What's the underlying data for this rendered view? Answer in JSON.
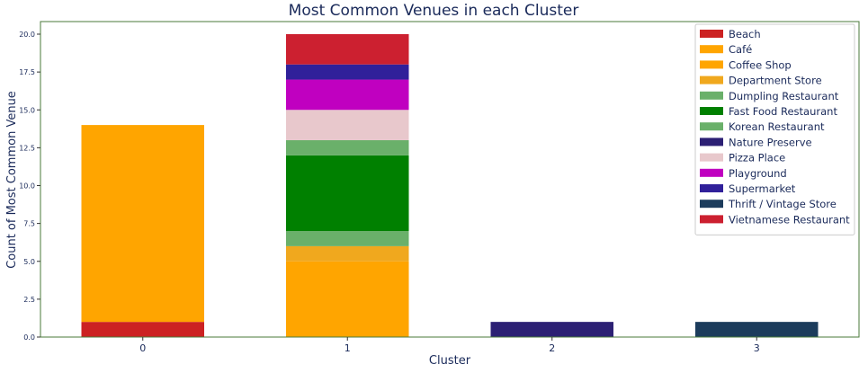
{
  "chart_data": {
    "type": "bar",
    "stacked": true,
    "title": "Most Common Venues in each Cluster",
    "xlabel": "Cluster",
    "ylabel": "Count of Most Common Venue",
    "categories": [
      "0",
      "1",
      "2",
      "3"
    ],
    "ylim": [
      0,
      21
    ],
    "yticks": [
      "0.0",
      "2.5",
      "5.0",
      "7.5",
      "10.0",
      "12.5",
      "15.0",
      "17.5",
      "20.0"
    ],
    "legend_position": "top-right",
    "series": [
      {
        "name": "Beach",
        "color": "#cc2222",
        "values": [
          1,
          0,
          0,
          0
        ]
      },
      {
        "name": "Café",
        "color": "#ffa500",
        "values": [
          13,
          5,
          0,
          0
        ]
      },
      {
        "name": "Coffee Shop",
        "color": "#ffa500",
        "values": [
          0,
          0,
          0,
          0
        ]
      },
      {
        "name": "Department Store",
        "color": "#f0a81e",
        "values": [
          0,
          1,
          0,
          0
        ]
      },
      {
        "name": "Dumpling Restaurant",
        "color": "#6ab06a",
        "values": [
          0,
          1,
          0,
          0
        ]
      },
      {
        "name": "Fast Food Restaurant",
        "color": "#008000",
        "values": [
          0,
          5,
          0,
          0
        ]
      },
      {
        "name": "Korean Restaurant",
        "color": "#6ab06a",
        "values": [
          0,
          1,
          0,
          0
        ]
      },
      {
        "name": "Nature Preserve",
        "color": "#2c2074",
        "values": [
          0,
          0,
          1,
          0
        ]
      },
      {
        "name": "Pizza Place",
        "color": "#e8c8cc",
        "values": [
          0,
          2,
          0,
          0
        ]
      },
      {
        "name": "Playground",
        "color": "#c000c0",
        "values": [
          0,
          2,
          0,
          0
        ]
      },
      {
        "name": "Supermarket",
        "color": "#30209a",
        "values": [
          0,
          1,
          0,
          0
        ]
      },
      {
        "name": "Thrift / Vintage Store",
        "color": "#1c3c5c",
        "values": [
          0,
          0,
          0,
          1
        ]
      },
      {
        "name": "Vietnamese Restaurant",
        "color": "#cc2030",
        "values": [
          0,
          2,
          0,
          0
        ]
      }
    ]
  }
}
